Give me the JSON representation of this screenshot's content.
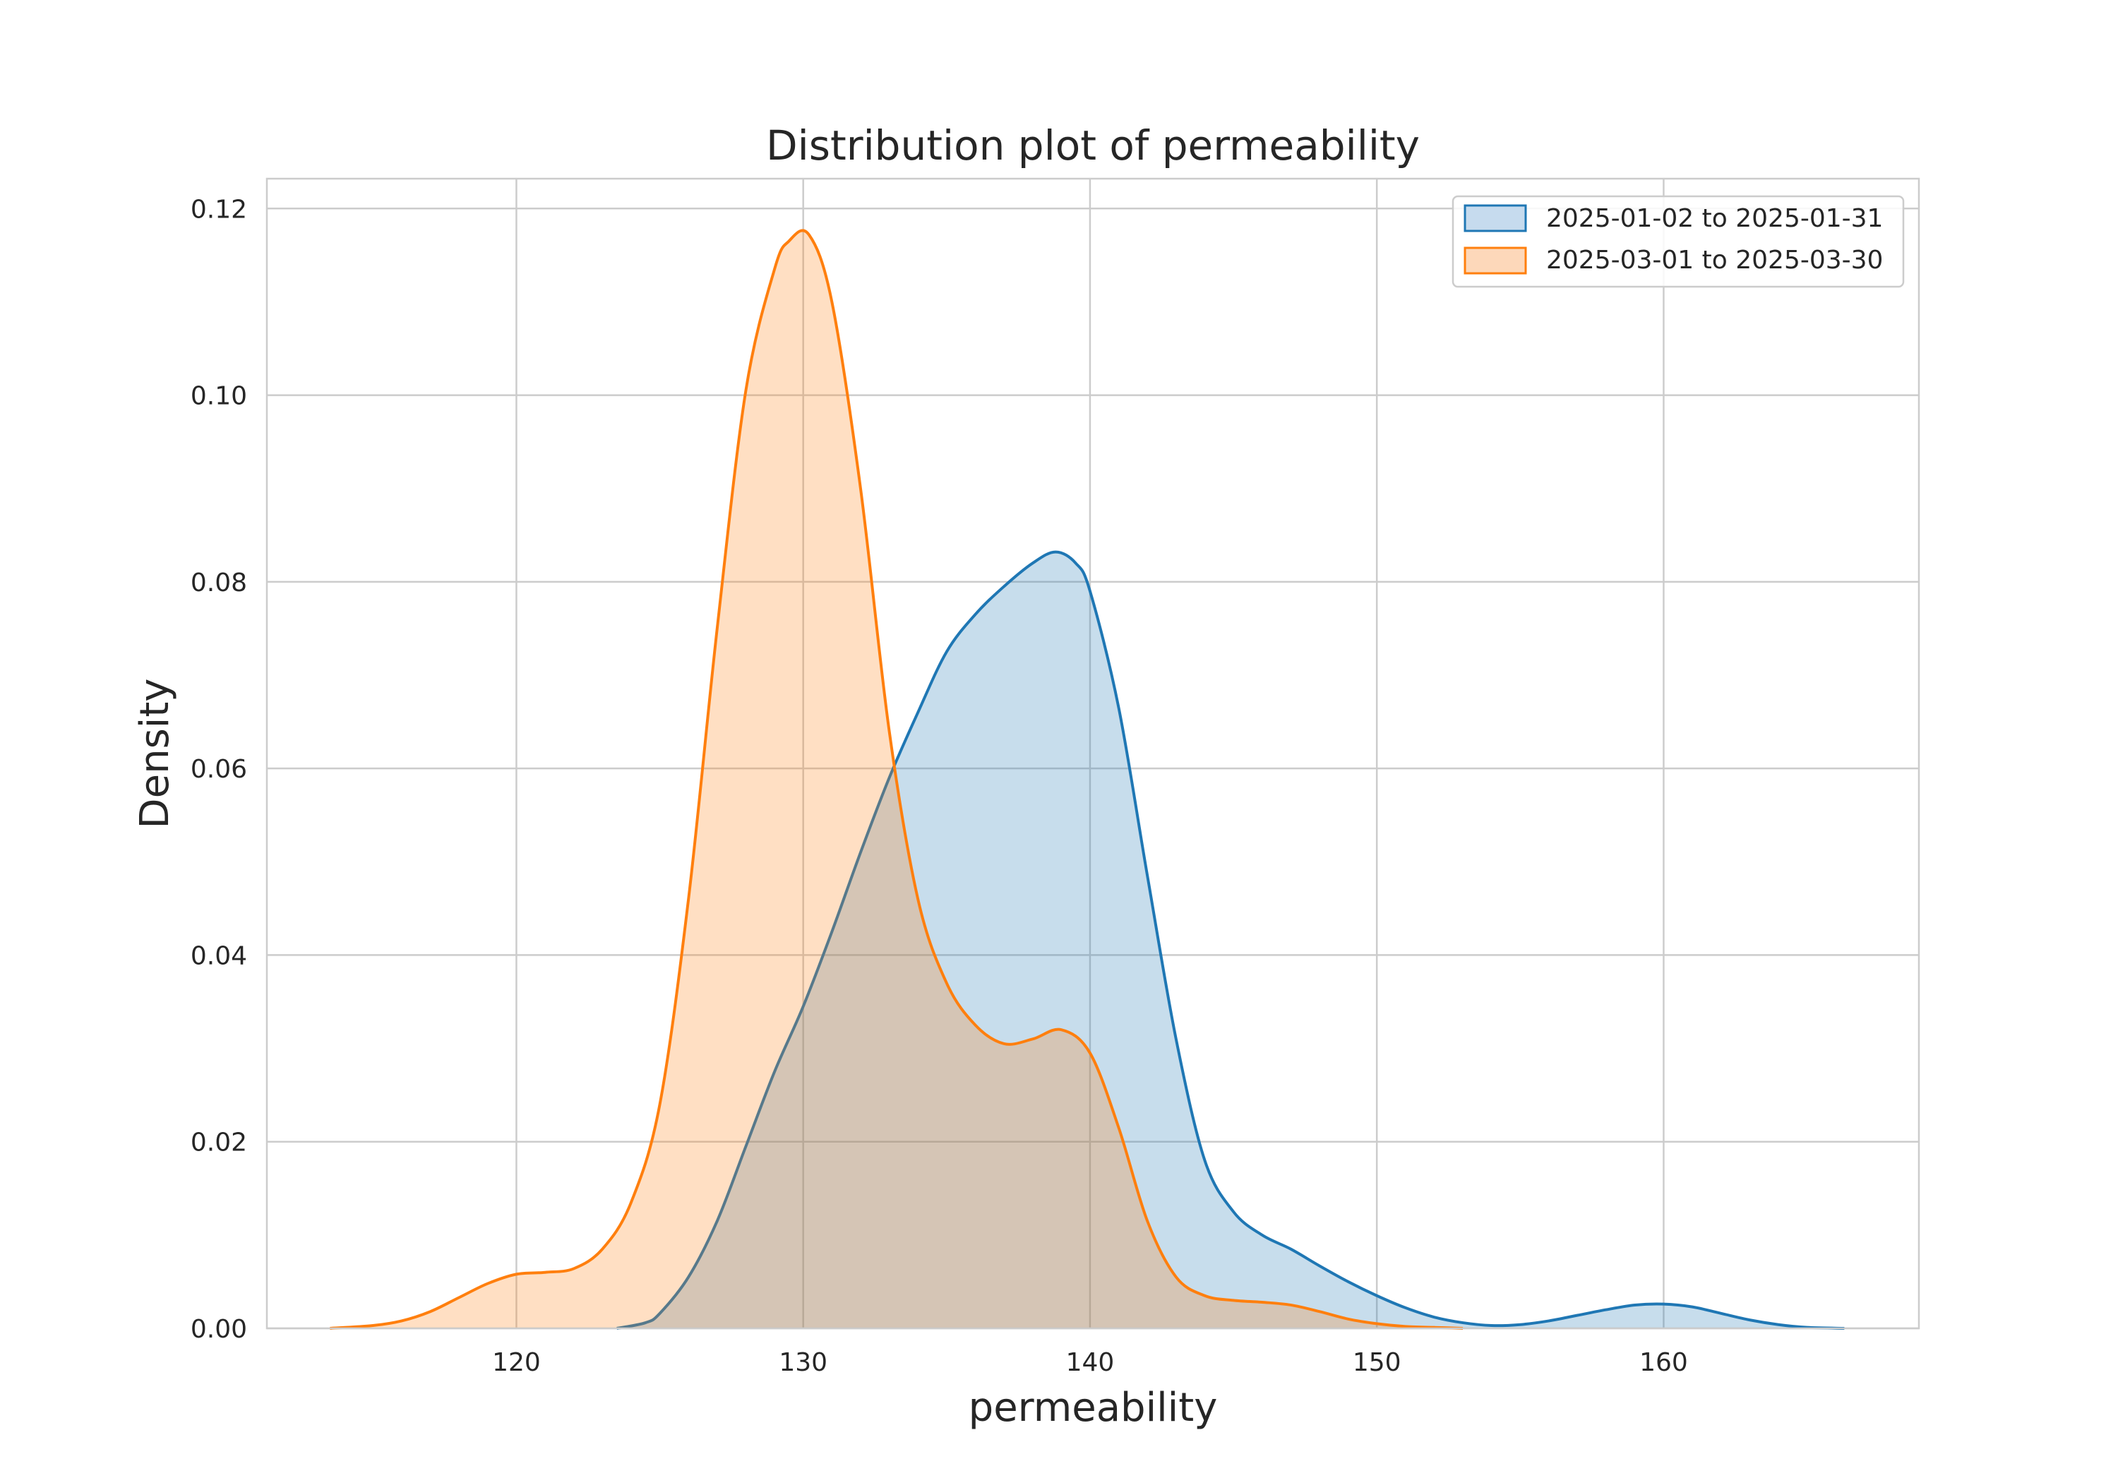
{
  "chart_data": {
    "type": "area",
    "title": "Distribution plot of permeability",
    "xlabel": "permeability",
    "ylabel": "Density",
    "xlim": [
      111.3,
      168.9
    ],
    "ylim": [
      0,
      0.1232
    ],
    "xticks": [
      120,
      130,
      140,
      150,
      160
    ],
    "yticks": [
      0,
      0.02,
      0.04,
      0.06,
      0.08,
      0.1,
      0.12
    ],
    "ytick_labels": [
      "0.00",
      "0.02",
      "0.04",
      "0.06",
      "0.08",
      "0.10",
      "0.12"
    ],
    "grid": true,
    "legend_position": "top-right",
    "series": [
      {
        "name": "2025-01-02 to 2025-01-31",
        "color": "#1f77b4",
        "fill": "#c6dbee",
        "x": [
          123.5,
          124.5,
          125,
          126,
          127,
          128,
          129,
          130,
          131,
          132,
          133,
          134,
          135,
          136,
          137,
          138,
          138.8,
          139.5,
          140,
          141,
          142,
          143,
          144,
          145,
          146,
          147,
          148,
          149,
          150,
          151,
          152,
          153,
          154,
          155,
          156,
          157,
          158,
          159,
          160,
          161,
          162,
          163,
          164,
          165,
          166.3
        ],
        "y": [
          0.0,
          0.0006,
          0.0016,
          0.0055,
          0.0115,
          0.0195,
          0.0275,
          0.0345,
          0.0425,
          0.051,
          0.059,
          0.066,
          0.0725,
          0.0765,
          0.0795,
          0.082,
          0.0832,
          0.082,
          0.079,
          0.0665,
          0.0485,
          0.031,
          0.018,
          0.0125,
          0.01,
          0.0085,
          0.0067,
          0.005,
          0.0035,
          0.0022,
          0.0012,
          0.0006,
          0.0003,
          0.0004,
          0.0008,
          0.0014,
          0.002,
          0.0025,
          0.0026,
          0.0023,
          0.0016,
          0.0009,
          0.0004,
          0.0001,
          0.0
        ]
      },
      {
        "name": "2025-03-01 to 2025-03-30",
        "color": "#ff7f0e",
        "fill": "#fdd8ba",
        "x": [
          113.5,
          115,
          116,
          117,
          118,
          119,
          120,
          121,
          122,
          123,
          124,
          125,
          126,
          127,
          128,
          129,
          129.5,
          130.2,
          131,
          132,
          133,
          134,
          135,
          136,
          137,
          138,
          139,
          140,
          141,
          142,
          143,
          144,
          145,
          146,
          147,
          148,
          149,
          150,
          151,
          152,
          153
        ],
        "y": [
          0.0,
          0.0003,
          0.0008,
          0.0018,
          0.0033,
          0.0048,
          0.0058,
          0.006,
          0.0064,
          0.0085,
          0.0135,
          0.024,
          0.046,
          0.075,
          0.1005,
          0.1135,
          0.1165,
          0.1172,
          0.11,
          0.09,
          0.064,
          0.046,
          0.037,
          0.0325,
          0.0305,
          0.031,
          0.032,
          0.0295,
          0.0215,
          0.0115,
          0.0055,
          0.0035,
          0.003,
          0.0028,
          0.0025,
          0.0018,
          0.001,
          0.0005,
          0.0002,
          0.0001,
          0.0
        ]
      }
    ]
  }
}
